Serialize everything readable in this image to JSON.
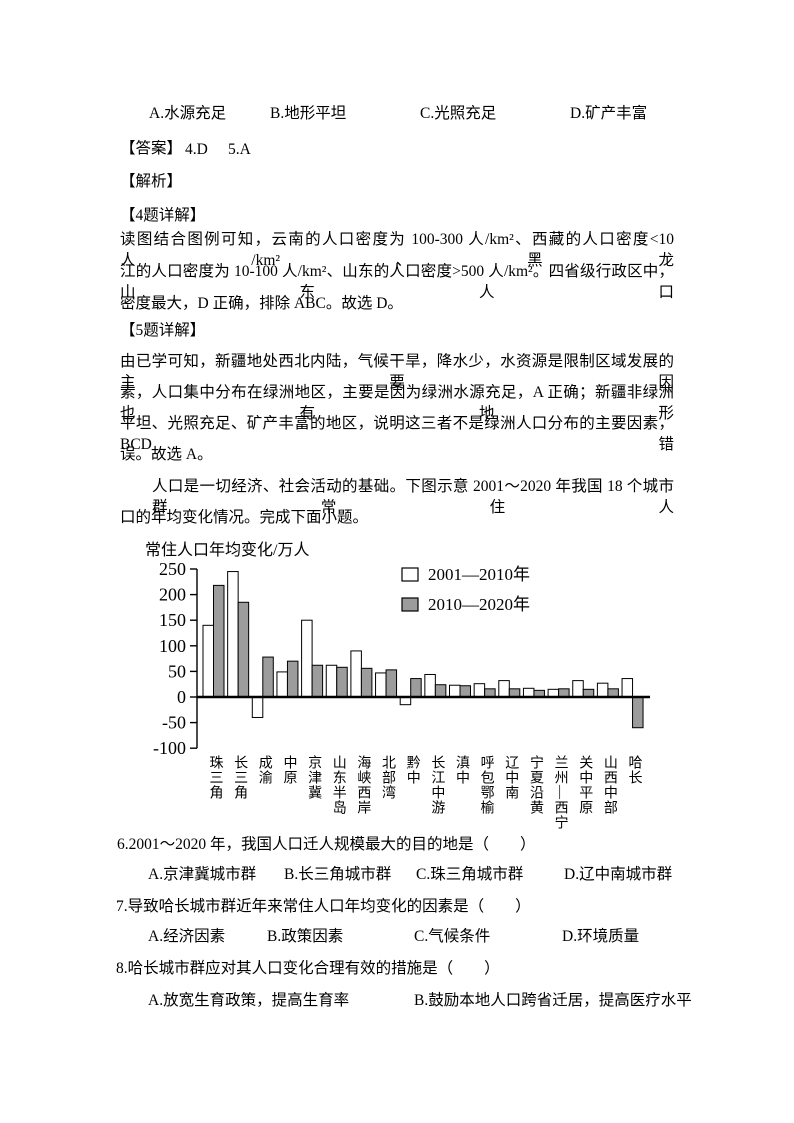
{
  "q5_options": [
    "A.水源充足",
    "B.地形平坦",
    "C.光照充足",
    "D.矿产丰富"
  ],
  "answer": {
    "prefix": "【答案】",
    "item1": "4.D",
    "item2": "5.A"
  },
  "analysis_label": "【解析】",
  "detail4_label": "【4题详解】",
  "para4_lines": [
    "读图结合图例可知，云南的人口密度为 100-300 人/km²、西藏的人口密度<10 人/km²、黑龙",
    "江的人口密度为 10-100 人/km²、山东的人口密度>500 人/km²。四省级行政区中，山东人口",
    "密度最大，D 正确，排除 ABC。故选 D。"
  ],
  "detail5_label": "【5题详解】",
  "para5_lines": [
    "由已学可知，新疆地处西北内陆，气候干旱，降水少，水资源是限制区域发展的主要因",
    "素，人口集中分布在绿洲地区，主要是因为绿洲水源充足，A 正确；新疆非绿洲也有地形",
    "平坦、光照充足、矿产丰富的地区，说明这三者不是绿洲人口分布的主要因素，BCD 错",
    "误。故选 A。"
  ],
  "intro_lines": [
    "人口是一切经济、社会活动的基础。下图示意 2001～2020 年我国 18 个城市群常住人",
    "口的年均变化情况。完成下面小题。"
  ],
  "questions": {
    "q6_text": "6.2001～2020 年，我国人口迁人规模最大的目的地是（　　）",
    "q6_options": [
      "A.京津冀城市群",
      "B.长三角城市群",
      "C.珠三角城市群",
      "D.辽中南城市群"
    ],
    "q7_text": "7.导致哈长城市群近年来常住人口年均变化的因素是（　　）",
    "q7_options": [
      "A.经济因素",
      "B.政策因素",
      "C.气候条件",
      "D.环境质量"
    ],
    "q8_text": "8.哈长城市群应对其人口变化合理有效的措施是（　　）",
    "q8_options": [
      "A.放宽生育政策，提高生育率",
      "B.鼓励本地人口跨省迁居，提高医疗水平"
    ]
  },
  "chart_data": {
    "type": "bar",
    "title": "常住人口年均变化/万人",
    "xlabel": "",
    "ylabel": "常住人口年均变化/万人",
    "ylim": [
      -100,
      250
    ],
    "yticks": [
      250,
      200,
      150,
      100,
      50,
      0,
      -50,
      -100
    ],
    "grid": false,
    "legend_position": "top-right",
    "axis_color": "#000000",
    "categories": [
      "珠三角",
      "长三角",
      "成渝",
      "中原",
      "京津冀",
      "山东半岛",
      "海峡西岸",
      "北部湾",
      "黔中",
      "长江中游",
      "滇中",
      "呼包鄂榆",
      "辽中南",
      "宁夏沿黄",
      "兰州—西宁",
      "关中平原",
      "山西中部",
      "哈长"
    ],
    "series": [
      {
        "name": "2001—2010年",
        "fill": "#ffffff",
        "values": [
          140,
          245,
          -40,
          49,
          150,
          62,
          90,
          47,
          -15,
          44,
          23,
          26,
          32,
          17,
          15,
          32,
          27,
          36
        ]
      },
      {
        "name": "2010—2020年",
        "fill": "#9c9c9c",
        "values": [
          218,
          185,
          78,
          70,
          62,
          58,
          56,
          53,
          36,
          24,
          22,
          16,
          16,
          13,
          16,
          15,
          16,
          -60
        ]
      }
    ]
  }
}
